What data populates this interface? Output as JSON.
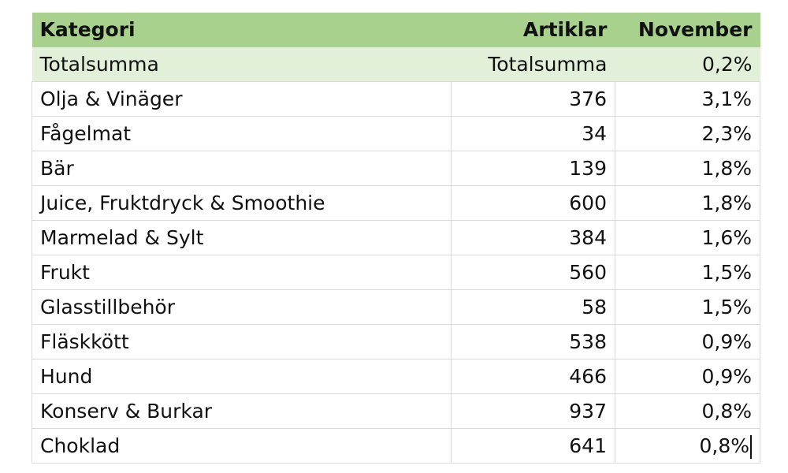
{
  "table": {
    "headers": {
      "category": "Kategori",
      "articles": "Artiklar",
      "november": "November"
    },
    "total_row": {
      "category": "Totalsumma",
      "articles": "Totalsumma",
      "november": "0,2%"
    },
    "rows": [
      {
        "category": "Olja & Vinäger",
        "articles": "376",
        "november": "3,1%"
      },
      {
        "category": "Fågelmat",
        "articles": "34",
        "november": "2,3%"
      },
      {
        "category": "Bär",
        "articles": "139",
        "november": "1,8%"
      },
      {
        "category": "Juice, Fruktdryck & Smoothie",
        "articles": "600",
        "november": "1,8%"
      },
      {
        "category": "Marmelad & Sylt",
        "articles": "384",
        "november": "1,6%"
      },
      {
        "category": "Frukt",
        "articles": "560",
        "november": "1,5%"
      },
      {
        "category": "Glasstillbehör",
        "articles": "58",
        "november": "1,5%"
      },
      {
        "category": "Fläskkött",
        "articles": "538",
        "november": "0,9%"
      },
      {
        "category": "Hund",
        "articles": "466",
        "november": "0,9%"
      },
      {
        "category": "Konserv & Burkar",
        "articles": "937",
        "november": "0,8%"
      },
      {
        "category": "Choklad",
        "articles": "641",
        "november": "0,8%"
      }
    ]
  },
  "colors": {
    "header_bg": "#a9d18e",
    "total_bg": "#e2efd9",
    "grid": "#d9d9d9"
  }
}
